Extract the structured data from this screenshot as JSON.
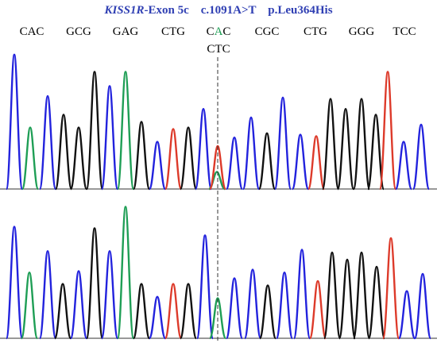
{
  "header": {
    "gene": "KISS1R",
    "rest": "-Exon 5c    c.1091A>T    p.Leu364His"
  },
  "codons": [
    "CAC",
    "GCG",
    "GAG",
    "CTG",
    "C",
    "A",
    "C",
    "CGC",
    "CTG",
    "GGG",
    "TCC"
  ],
  "mutant_codon": "CTC",
  "colors": {
    "header": "#2f3fb3",
    "A": "#1e9e55",
    "C": "#2222dd",
    "G": "#111111",
    "T": "#dd3a2a",
    "baseline": "#333333",
    "marker": "#333333"
  },
  "traces": [
    {
      "name": "upper",
      "peaks": [
        {
          "base": "C",
          "x": 18,
          "h": 0.94
        },
        {
          "base": "A",
          "x": 38,
          "h": 0.43
        },
        {
          "base": "C",
          "x": 60,
          "h": 0.65
        },
        {
          "base": "G",
          "x": 80,
          "h": 0.52
        },
        {
          "base": "G",
          "x": 99,
          "h": 0.43
        },
        {
          "base": "G",
          "x": 119,
          "h": 0.82
        },
        {
          "base": "C",
          "x": 138,
          "h": 0.72
        },
        {
          "base": "A",
          "x": 158,
          "h": 0.82
        },
        {
          "base": "G",
          "x": 178,
          "h": 0.47
        },
        {
          "base": "C",
          "x": 198,
          "h": 0.33
        },
        {
          "base": "T",
          "x": 218,
          "h": 0.42
        },
        {
          "base": "G",
          "x": 237,
          "h": 0.43
        },
        {
          "base": "C",
          "x": 256,
          "h": 0.56
        },
        {
          "base": "A",
          "x": 273,
          "h": 0.12
        },
        {
          "base": "T",
          "x": 274,
          "h": 0.3
        },
        {
          "base": "C",
          "x": 295,
          "h": 0.36
        },
        {
          "base": "C",
          "x": 316,
          "h": 0.5
        },
        {
          "base": "G",
          "x": 336,
          "h": 0.39
        },
        {
          "base": "C",
          "x": 356,
          "h": 0.64
        },
        {
          "base": "C",
          "x": 378,
          "h": 0.38
        },
        {
          "base": "T",
          "x": 398,
          "h": 0.37
        },
        {
          "base": "G",
          "x": 416,
          "h": 0.63
        },
        {
          "base": "G",
          "x": 435,
          "h": 0.56
        },
        {
          "base": "G",
          "x": 455,
          "h": 0.63
        },
        {
          "base": "G",
          "x": 473,
          "h": 0.52
        },
        {
          "base": "T",
          "x": 488,
          "h": 0.82
        },
        {
          "base": "C",
          "x": 508,
          "h": 0.33
        },
        {
          "base": "C",
          "x": 530,
          "h": 0.45
        }
      ]
    },
    {
      "name": "lower",
      "peaks": [
        {
          "base": "C",
          "x": 18,
          "h": 0.78
        },
        {
          "base": "A",
          "x": 37,
          "h": 0.46
        },
        {
          "base": "C",
          "x": 60,
          "h": 0.61
        },
        {
          "base": "G",
          "x": 79,
          "h": 0.38
        },
        {
          "base": "C",
          "x": 99,
          "h": 0.47
        },
        {
          "base": "G",
          "x": 119,
          "h": 0.77
        },
        {
          "base": "C",
          "x": 138,
          "h": 0.61
        },
        {
          "base": "A",
          "x": 158,
          "h": 0.92
        },
        {
          "base": "G",
          "x": 178,
          "h": 0.38
        },
        {
          "base": "C",
          "x": 198,
          "h": 0.29
        },
        {
          "base": "T",
          "x": 218,
          "h": 0.38
        },
        {
          "base": "G",
          "x": 237,
          "h": 0.38
        },
        {
          "base": "C",
          "x": 258,
          "h": 0.72
        },
        {
          "base": "A",
          "x": 274,
          "h": 0.28
        },
        {
          "base": "C",
          "x": 295,
          "h": 0.42
        },
        {
          "base": "C",
          "x": 318,
          "h": 0.48
        },
        {
          "base": "G",
          "x": 337,
          "h": 0.37
        },
        {
          "base": "C",
          "x": 358,
          "h": 0.46
        },
        {
          "base": "C",
          "x": 380,
          "h": 0.62
        },
        {
          "base": "T",
          "x": 400,
          "h": 0.4
        },
        {
          "base": "G",
          "x": 418,
          "h": 0.6
        },
        {
          "base": "G",
          "x": 437,
          "h": 0.55
        },
        {
          "base": "G",
          "x": 455,
          "h": 0.6
        },
        {
          "base": "G",
          "x": 474,
          "h": 0.5
        },
        {
          "base": "T",
          "x": 492,
          "h": 0.7
        },
        {
          "base": "C",
          "x": 512,
          "h": 0.33
        },
        {
          "base": "C",
          "x": 532,
          "h": 0.45
        }
      ]
    }
  ]
}
